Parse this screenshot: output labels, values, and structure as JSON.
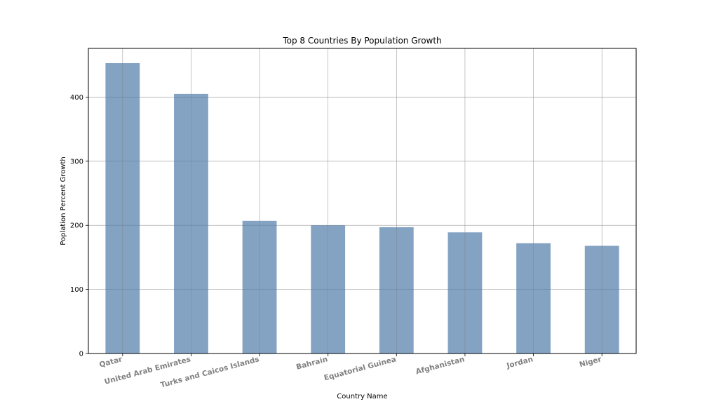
{
  "chart_data": {
    "type": "bar",
    "title": "Top 8 Countries By Population Growth",
    "xlabel": "Country Name",
    "ylabel": "Poplation Percent Growth",
    "categories": [
      "Qatar",
      "United Arab Emirates",
      "Turks and Caicos Islands",
      "Bahrain",
      "Equatorial Guinea",
      "Afghanistan",
      "Jordan",
      "Niger"
    ],
    "values": [
      453,
      405,
      207,
      200,
      197,
      189,
      172,
      168
    ],
    "yticks": [
      0,
      100,
      200,
      300,
      400
    ],
    "ylim": [
      0,
      476
    ],
    "grid": true,
    "bar_color": "#4a78a6",
    "tick_label_color": "#808080"
  }
}
